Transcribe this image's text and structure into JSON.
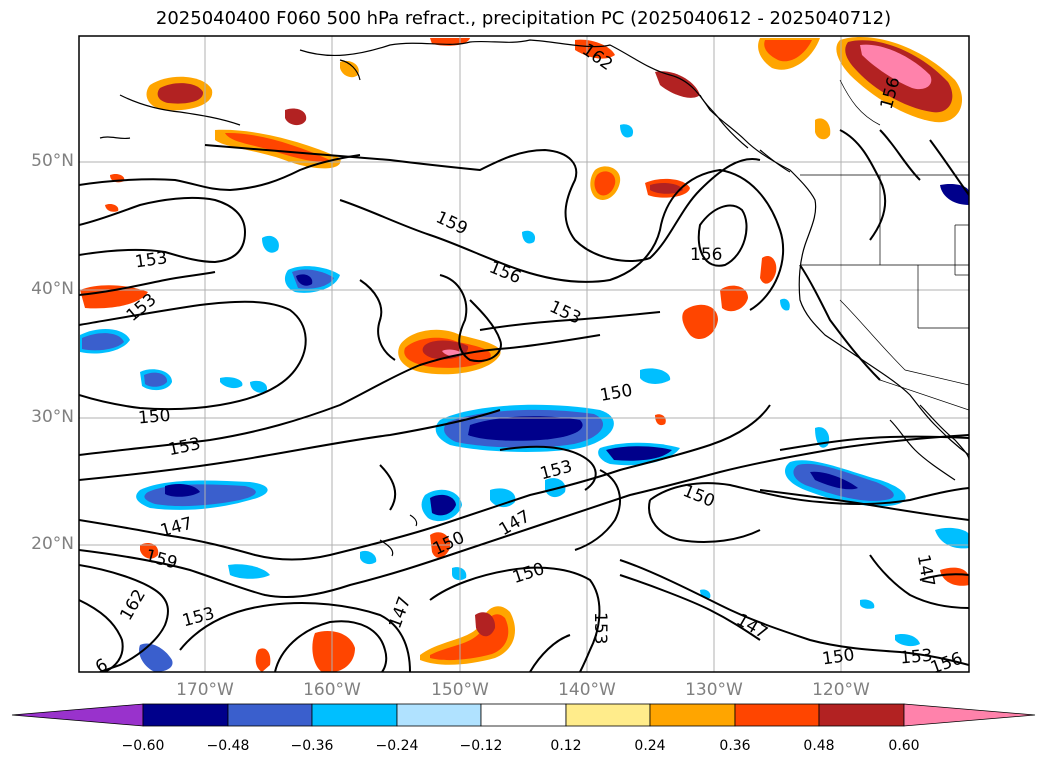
{
  "title": "2025040400 F060 500 hPa refract., precipitation PC (2025040612 - 2025040712)",
  "latitude_labels": [
    "50°N",
    "40°N",
    "30°N",
    "20°N"
  ],
  "longitude_labels": [
    "170°W",
    "160°W",
    "150°W",
    "140°W",
    "130°W",
    "120°W"
  ],
  "contour_labels": [
    "162",
    "156",
    "159",
    "153",
    "156",
    "153",
    "156",
    "153",
    "150",
    "153",
    "150",
    "150",
    "153",
    "147",
    "150",
    "147",
    "150",
    "159",
    "162",
    "153",
    "147",
    "153",
    "147",
    "150",
    "153",
    "156",
    "147",
    "6"
  ],
  "colorbar": {
    "ticks": [
      "−0.60",
      "−0.48",
      "−0.36",
      "−0.24",
      "−0.12",
      "0.12",
      "0.24",
      "0.36",
      "0.48",
      "0.60"
    ],
    "colors": [
      "#9932cc",
      "#00008b",
      "#3a5fcd",
      "#00bfff",
      "#b0e2ff",
      "#ffffff",
      "#ffec8b",
      "#ffa500",
      "#ff4500",
      "#b22222",
      "#ff82ab"
    ]
  }
}
